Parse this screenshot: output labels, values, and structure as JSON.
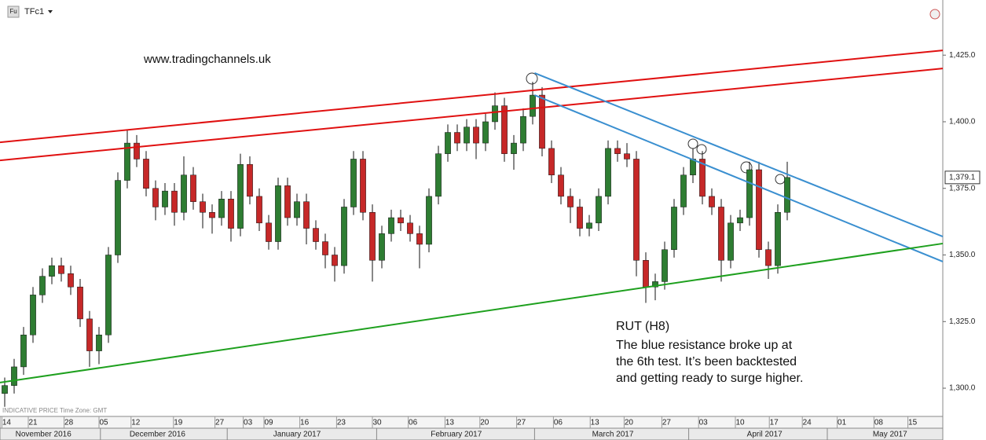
{
  "chart_data": {
    "type": "candlestick",
    "symbol": "TFc1",
    "badge": "Fu",
    "watermark": "www.tradingchannels.uk",
    "footer_note": "INDICATIVE PRICE   Time Zone: GMT",
    "annotation": [
      "RUT (H8)",
      "The blue resistance broke up at",
      "the 6th test. It’s been backtested",
      "and getting ready to surge higher."
    ],
    "up_color": "#2e7d32",
    "down_color": "#c62828",
    "open": [
      1298,
      1301,
      1308,
      1320,
      1335,
      1342,
      1346,
      1343,
      1338,
      1326,
      1314,
      1320,
      1350,
      1378,
      1392,
      1386,
      1375,
      1368,
      1374,
      1366,
      1380,
      1370,
      1366,
      1364,
      1371,
      1360,
      1384,
      1372,
      1362,
      1355,
      1376,
      1364,
      1370,
      1360,
      1355,
      1350,
      1346,
      1368,
      1386,
      1366,
      1348,
      1358,
      1364,
      1362,
      1358,
      1354,
      1372,
      1388,
      1396,
      1392,
      1398,
      1392,
      1400,
      1406,
      1388,
      1392,
      1402,
      1410,
      1390,
      1380,
      1372,
      1368,
      1360,
      1362,
      1372,
      1390,
      1388,
      1386,
      1348,
      1338,
      1340,
      1352,
      1368,
      1380,
      1386,
      1372,
      1368,
      1348,
      1362,
      1364,
      1382,
      1352,
      1346,
      1366
    ],
    "high": [
      1304,
      1311,
      1323,
      1338,
      1345,
      1349,
      1349,
      1346,
      1341,
      1329,
      1323,
      1353,
      1381,
      1397,
      1395,
      1389,
      1378,
      1377,
      1377,
      1387,
      1383,
      1373,
      1369,
      1374,
      1374,
      1388,
      1387,
      1375,
      1365,
      1379,
      1379,
      1373,
      1373,
      1363,
      1358,
      1353,
      1371,
      1389,
      1389,
      1369,
      1361,
      1367,
      1367,
      1365,
      1361,
      1375,
      1391,
      1399,
      1399,
      1401,
      1401,
      1403,
      1411,
      1409,
      1395,
      1405,
      1415,
      1413,
      1393,
      1383,
      1375,
      1371,
      1365,
      1375,
      1393,
      1393,
      1392,
      1389,
      1351,
      1343,
      1355,
      1371,
      1383,
      1390,
      1389,
      1375,
      1371,
      1365,
      1367,
      1385,
      1385,
      1355,
      1369,
      1385
    ],
    "low": [
      1293,
      1298,
      1305,
      1317,
      1332,
      1339,
      1340,
      1335,
      1323,
      1308,
      1309,
      1317,
      1347,
      1375,
      1383,
      1372,
      1363,
      1365,
      1361,
      1363,
      1367,
      1360,
      1358,
      1361,
      1355,
      1357,
      1369,
      1359,
      1352,
      1352,
      1361,
      1361,
      1354,
      1352,
      1345,
      1340,
      1343,
      1365,
      1363,
      1340,
      1345,
      1355,
      1359,
      1355,
      1345,
      1351,
      1369,
      1385,
      1389,
      1389,
      1386,
      1389,
      1397,
      1385,
      1382,
      1389,
      1399,
      1387,
      1377,
      1369,
      1362,
      1357,
      1357,
      1359,
      1369,
      1385,
      1383,
      1342,
      1332,
      1333,
      1337,
      1349,
      1365,
      1377,
      1369,
      1365,
      1340,
      1345,
      1359,
      1361,
      1349,
      1341,
      1343,
      1363
    ],
    "close": [
      1301,
      1308,
      1320,
      1335,
      1342,
      1346,
      1343,
      1338,
      1326,
      1314,
      1320,
      1350,
      1378,
      1392,
      1386,
      1375,
      1368,
      1374,
      1366,
      1380,
      1370,
      1366,
      1364,
      1371,
      1360,
      1384,
      1372,
      1362,
      1355,
      1376,
      1364,
      1370,
      1360,
      1355,
      1350,
      1346,
      1368,
      1386,
      1366,
      1348,
      1358,
      1364,
      1362,
      1358,
      1354,
      1372,
      1388,
      1396,
      1392,
      1398,
      1392,
      1400,
      1406,
      1388,
      1392,
      1402,
      1410,
      1390,
      1380,
      1372,
      1368,
      1360,
      1362,
      1372,
      1390,
      1388,
      1386,
      1348,
      1338,
      1340,
      1352,
      1368,
      1380,
      1386,
      1372,
      1368,
      1348,
      1362,
      1364,
      1382,
      1352,
      1346,
      1366,
      1379.1
    ],
    "last_price": {
      "value": 1379.1,
      "label": "1,379.1"
    },
    "xlim": [
      -0.5,
      99.5
    ],
    "ylim": [
      1289.4,
      1445.7
    ],
    "yticks": [
      {
        "value": 1300,
        "label": "1,300.0"
      },
      {
        "value": 1325,
        "label": "1,325.0"
      },
      {
        "value": 1350,
        "label": "1,350.0"
      },
      {
        "value": 1375,
        "label": "1,375.0"
      },
      {
        "value": 1400,
        "label": "1,400.0"
      },
      {
        "value": 1425,
        "label": "1,425.0"
      }
    ],
    "xticks": [
      {
        "value": 0.2,
        "label": "14"
      },
      {
        "value": 3,
        "label": "21"
      },
      {
        "value": 6.8,
        "label": "28"
      },
      {
        "value": 10.5,
        "label": "05"
      },
      {
        "value": 13.9,
        "label": "12"
      },
      {
        "value": 18.4,
        "label": "19"
      },
      {
        "value": 22.8,
        "label": "27"
      },
      {
        "value": 25.8,
        "label": "03"
      },
      {
        "value": 28,
        "label": "09"
      },
      {
        "value": 31.8,
        "label": "16"
      },
      {
        "value": 35.7,
        "label": "23"
      },
      {
        "value": 39.5,
        "label": "30"
      },
      {
        "value": 43.3,
        "label": "06"
      },
      {
        "value": 47.2,
        "label": "13"
      },
      {
        "value": 50.9,
        "label": "20"
      },
      {
        "value": 54.8,
        "label": "27"
      },
      {
        "value": 58.7,
        "label": "06"
      },
      {
        "value": 62.6,
        "label": "13"
      },
      {
        "value": 66.2,
        "label": "20"
      },
      {
        "value": 70.2,
        "label": "27"
      },
      {
        "value": 74.1,
        "label": "03"
      },
      {
        "value": 78,
        "label": "10"
      },
      {
        "value": 81.6,
        "label": "17"
      },
      {
        "value": 85.1,
        "label": "24"
      },
      {
        "value": 88.8,
        "label": "01"
      },
      {
        "value": 92.7,
        "label": "08"
      },
      {
        "value": 96.3,
        "label": "15"
      }
    ],
    "month_ticks": [
      {
        "value": 4.1,
        "label": "November 2016"
      },
      {
        "value": 16.2,
        "label": "December 2016"
      },
      {
        "value": 31,
        "label": "January 2017"
      },
      {
        "value": 47.9,
        "label": "February 2017"
      },
      {
        "value": 64.5,
        "label": "March 2017"
      },
      {
        "value": 80.6,
        "label": "April 2017"
      },
      {
        "value": 93.9,
        "label": "May 2017"
      }
    ],
    "trendlines": [
      {
        "color": "#e01010",
        "x": [
          -0.5,
          99.5
        ],
        "y": [
          1392.3,
          1426.8
        ]
      },
      {
        "color": "#e01010",
        "x": [
          -0.5,
          99.5
        ],
        "y": [
          1385.5,
          1420.0
        ]
      },
      {
        "color": "#3a8fd0",
        "x": [
          56.2,
          99.5
        ],
        "y": [
          1418.3,
          1356.9
        ]
      },
      {
        "color": "#3a8fd0",
        "x": [
          56.2,
          99.5
        ],
        "y": [
          1410.0,
          1347.5
        ]
      },
      {
        "color": "#1ea01e",
        "x": [
          -0.5,
          99.5
        ],
        "y": [
          1302.1,
          1354.3
        ]
      }
    ]
  }
}
